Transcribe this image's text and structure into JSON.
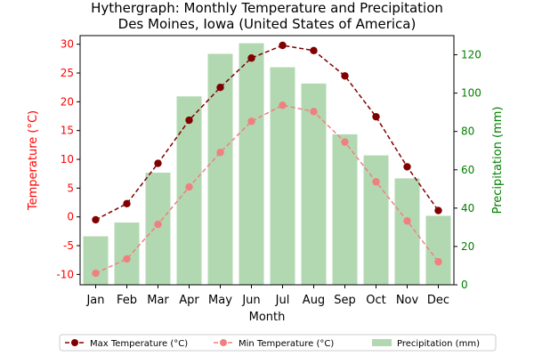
{
  "chart_data": {
    "type": "bar",
    "title": "Hythergraph: Monthly Temperature and Precipitation",
    "subtitle": "Des Moines, Iowa (United States of America)",
    "xlabel": "Month",
    "ylabel_left": "Temperature (°C)",
    "ylabel_right": "Precipitation (mm)",
    "categories": [
      "Jan",
      "Feb",
      "Mar",
      "Apr",
      "May",
      "Jun",
      "Jul",
      "Aug",
      "Sep",
      "Oct",
      "Nov",
      "Dec"
    ],
    "ylim_left": [
      -11.8,
      31.5
    ],
    "yticks_left": [
      -10,
      -5,
      0,
      5,
      10,
      15,
      20,
      25,
      30
    ],
    "ylim_right": [
      0,
      130
    ],
    "yticks_right": [
      0,
      20,
      40,
      60,
      80,
      100,
      120
    ],
    "grid": false,
    "legend_placement": "bottom",
    "series": [
      {
        "name": "Max Temperature (°C)",
        "axis": "left",
        "kind": "line",
        "color": "#800000",
        "style": "dashed",
        "values": [
          -0.5,
          2.3,
          9.3,
          16.8,
          22.5,
          27.6,
          29.8,
          28.9,
          24.5,
          17.4,
          8.7,
          1.1
        ]
      },
      {
        "name": "Min Temperature (°C)",
        "axis": "left",
        "kind": "line",
        "color": "#f08080",
        "style": "dashed",
        "values": [
          -9.8,
          -7.3,
          -1.3,
          5.2,
          11.2,
          16.6,
          19.4,
          18.3,
          13.0,
          6.1,
          -0.7,
          -7.8
        ]
      },
      {
        "name": "Precipitation (mm)",
        "axis": "right",
        "kind": "bar",
        "color": "#b2d8b2",
        "values": [
          25.3,
          32.5,
          58.5,
          98.3,
          120.5,
          126.0,
          113.5,
          105.0,
          78.5,
          67.5,
          55.5,
          36.0
        ]
      }
    ],
    "colors": {
      "left_axis": "#ff0000",
      "right_axis": "#008000"
    }
  }
}
